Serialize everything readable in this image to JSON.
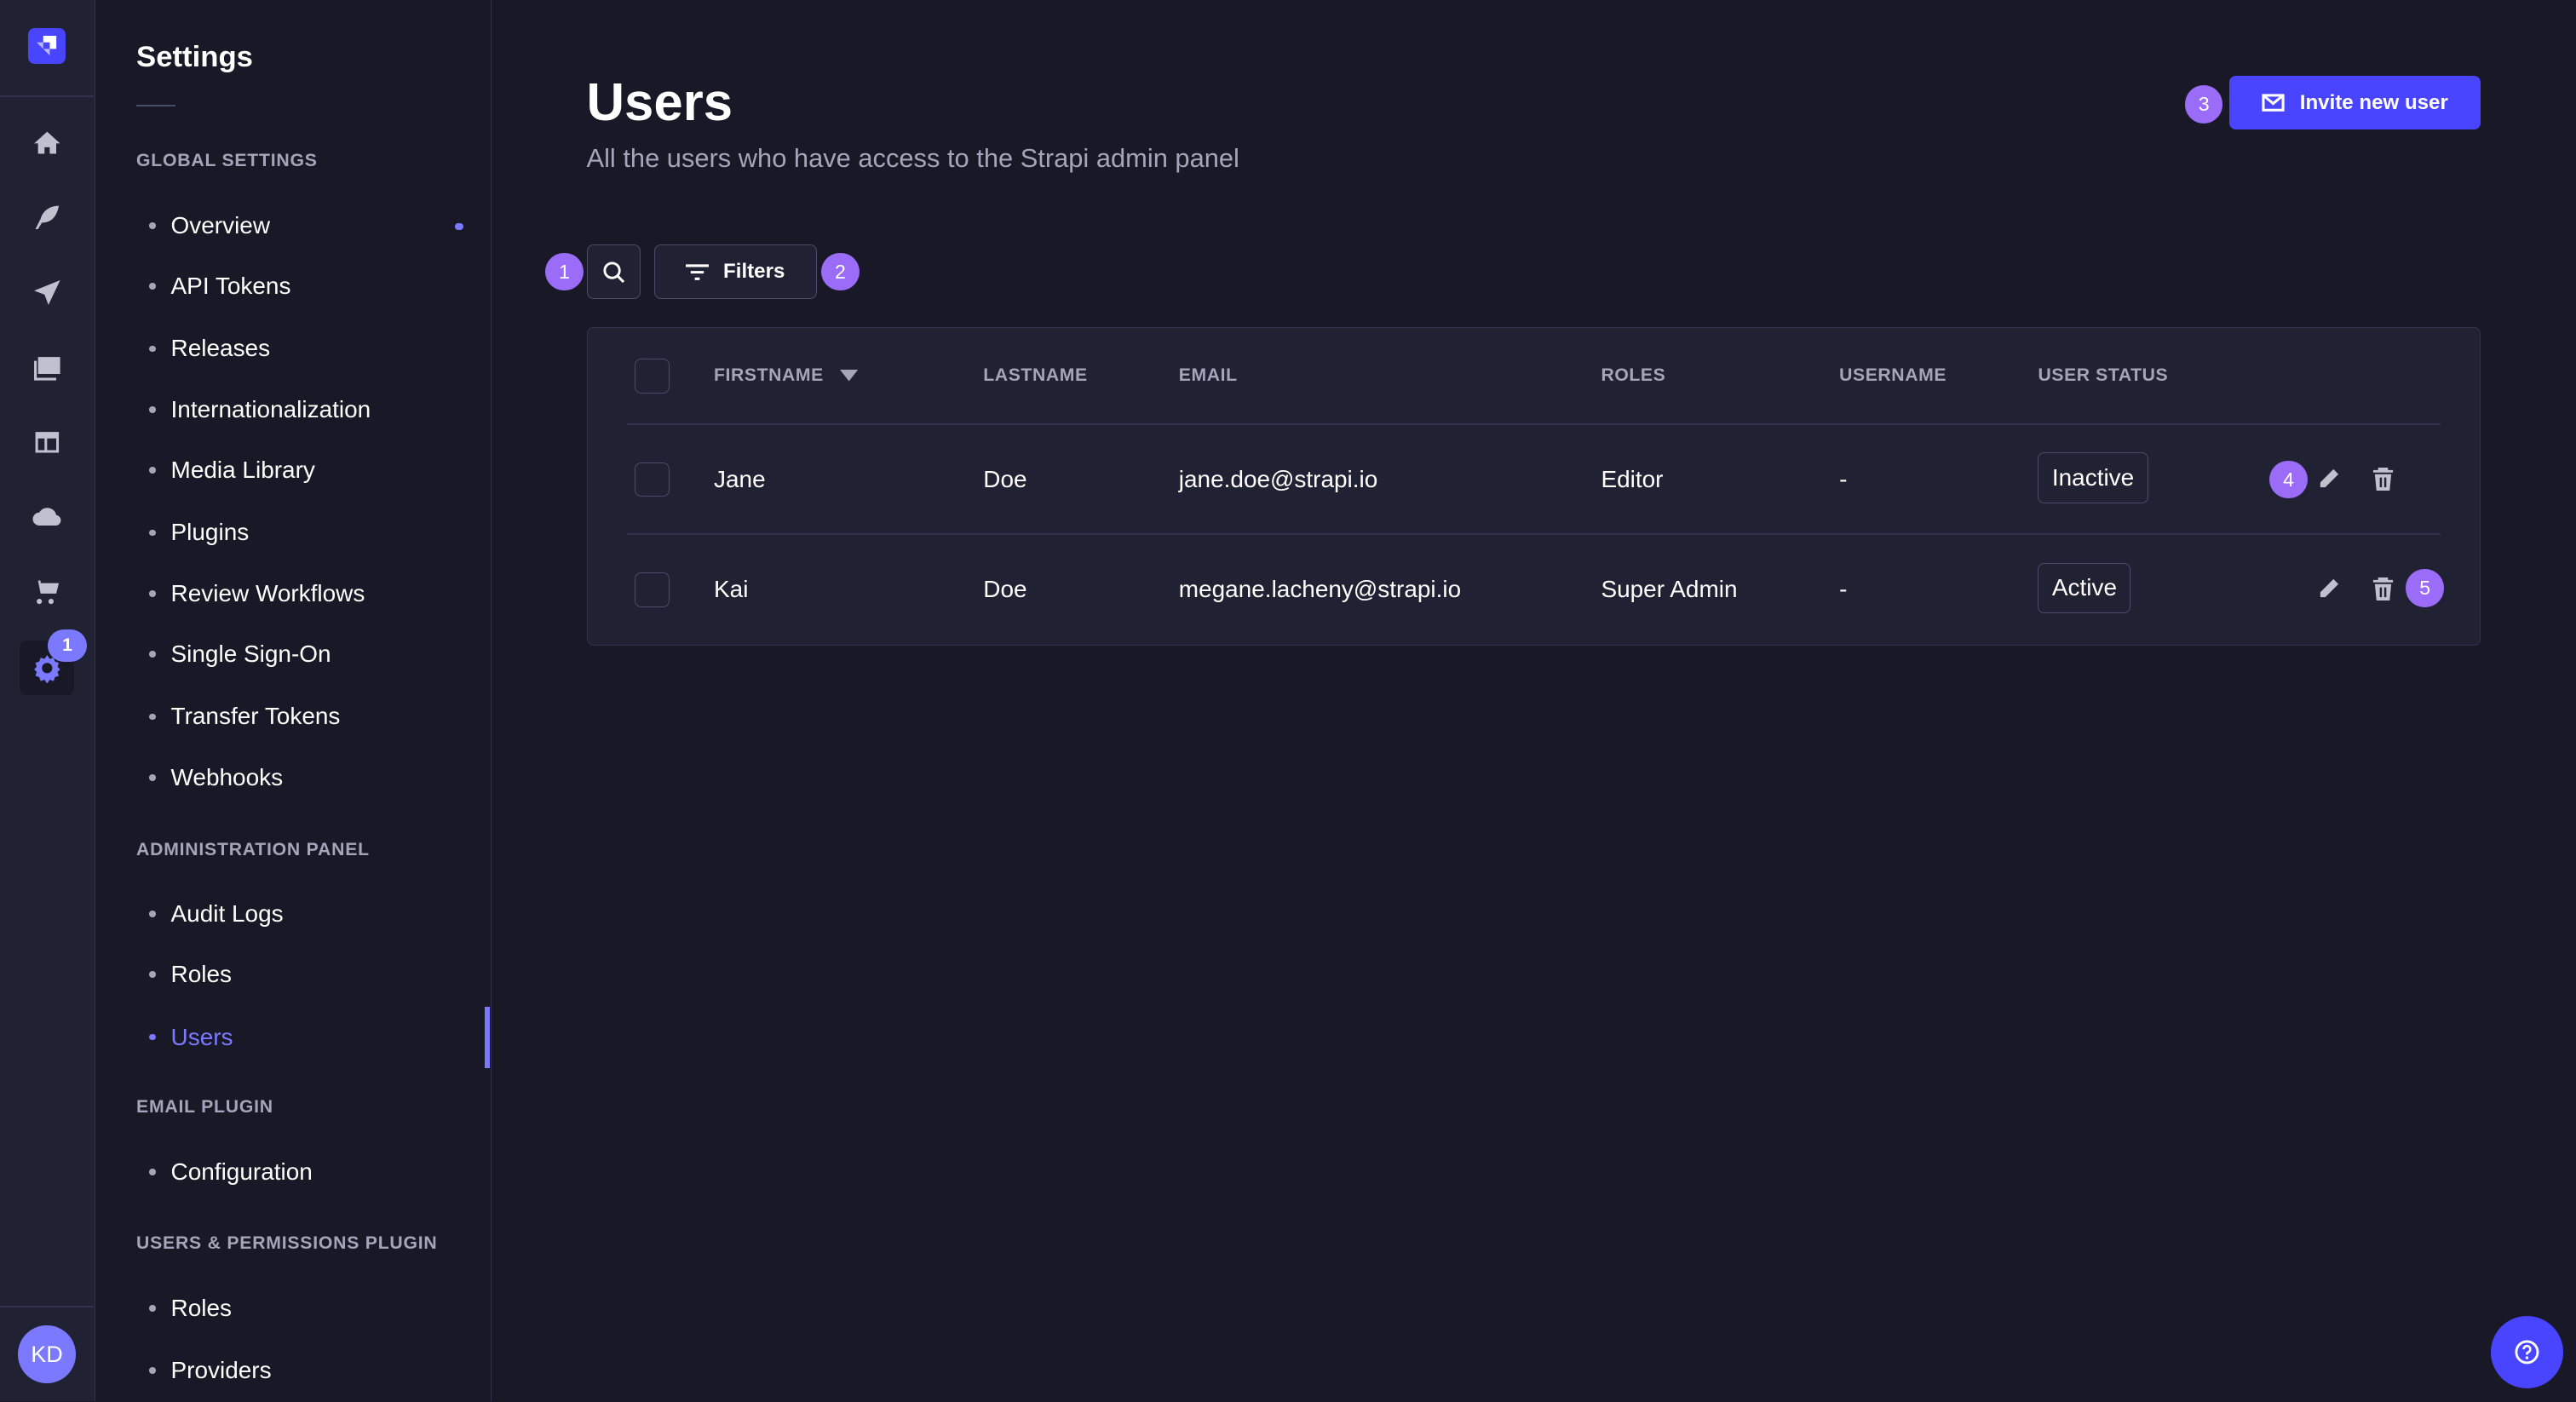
{
  "nav": {
    "icons": [
      "strapi-logo-icon",
      "home-icon",
      "content-manager-icon",
      "releases-icon",
      "media-library-icon",
      "content-type-builder-icon",
      "cloud-icon",
      "marketplace-icon",
      "settings-icon"
    ],
    "settings_badge": "1",
    "avatar_initials": "KD"
  },
  "sidebar": {
    "title": "Settings",
    "sections": [
      {
        "label": "GLOBAL SETTINGS",
        "items": [
          "Overview",
          "API Tokens",
          "Releases",
          "Internationalization",
          "Media Library",
          "Plugins",
          "Review Workflows",
          "Single Sign-On",
          "Transfer Tokens",
          "Webhooks"
        ]
      },
      {
        "label": "ADMINISTRATION PANEL",
        "items": [
          "Audit Logs",
          "Roles",
          "Users"
        ]
      },
      {
        "label": "EMAIL PLUGIN",
        "items": [
          "Configuration"
        ]
      },
      {
        "label": "USERS & PERMISSIONS PLUGIN",
        "items": [
          "Roles",
          "Providers"
        ]
      }
    ],
    "selected": "Users"
  },
  "page": {
    "title": "Users",
    "subtitle": "All the users who have access to the Strapi admin panel",
    "invite_label": "Invite new user",
    "filters_label": "Filters"
  },
  "annotations": [
    "1",
    "2",
    "3",
    "4",
    "5"
  ],
  "table": {
    "columns": [
      "FIRSTNAME",
      "LASTNAME",
      "EMAIL",
      "ROLES",
      "USERNAME",
      "USER STATUS"
    ],
    "sort": {
      "column": "FIRSTNAME",
      "direction": "descending"
    },
    "rows": [
      {
        "firstname": "Jane",
        "lastname": "Doe",
        "email": "jane.doe@strapi.io",
        "roles": "Editor",
        "username": "-",
        "status": "Inactive"
      },
      {
        "firstname": "Kai",
        "lastname": "Doe",
        "email": "megane.lacheny@strapi.io",
        "roles": "Super Admin",
        "username": "-",
        "status": "Active"
      }
    ]
  },
  "colors": {
    "primary": "#4945ff",
    "annotation": "#9b6cf7",
    "background": "#181826",
    "surface": "#212134"
  }
}
